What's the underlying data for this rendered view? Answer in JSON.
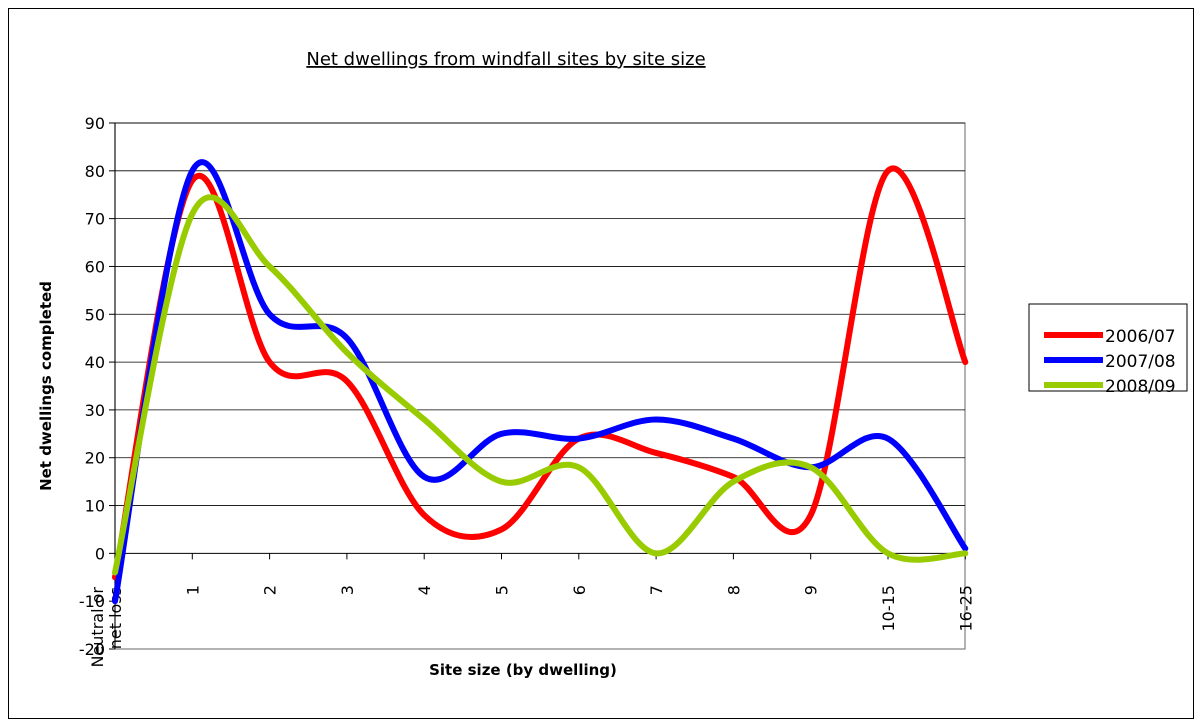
{
  "chart_data": {
    "type": "line",
    "title": "Net dwellings from windfall sites by site size",
    "xlabel": "Site size (by dwelling)",
    "ylabel": "Net dwellings completed",
    "categories": [
      "Neutral or net loss",
      "1",
      "2",
      "3",
      "4",
      "5",
      "6",
      "7",
      "8",
      "9",
      "10-15",
      "16-25"
    ],
    "ylim": [
      -20,
      90
    ],
    "yticks": [
      -20,
      -10,
      0,
      10,
      20,
      30,
      40,
      50,
      60,
      70,
      80,
      90
    ],
    "grid": true,
    "smooth": true,
    "legend_position": "right",
    "series": [
      {
        "name": "2006/07",
        "color": "#ff0000",
        "values": [
          -5,
          78,
          40,
          36,
          8,
          5,
          24,
          21,
          16,
          8,
          80,
          40
        ]
      },
      {
        "name": "2007/08",
        "color": "#0000ff",
        "values": [
          -10,
          80,
          50,
          45,
          16,
          25,
          24,
          28,
          24,
          18,
          24,
          1
        ]
      },
      {
        "name": "2008/09",
        "color": "#99cc00",
        "values": [
          -4,
          71,
          60,
          42,
          28,
          15,
          18,
          0,
          15,
          18,
          0,
          0
        ]
      }
    ]
  }
}
